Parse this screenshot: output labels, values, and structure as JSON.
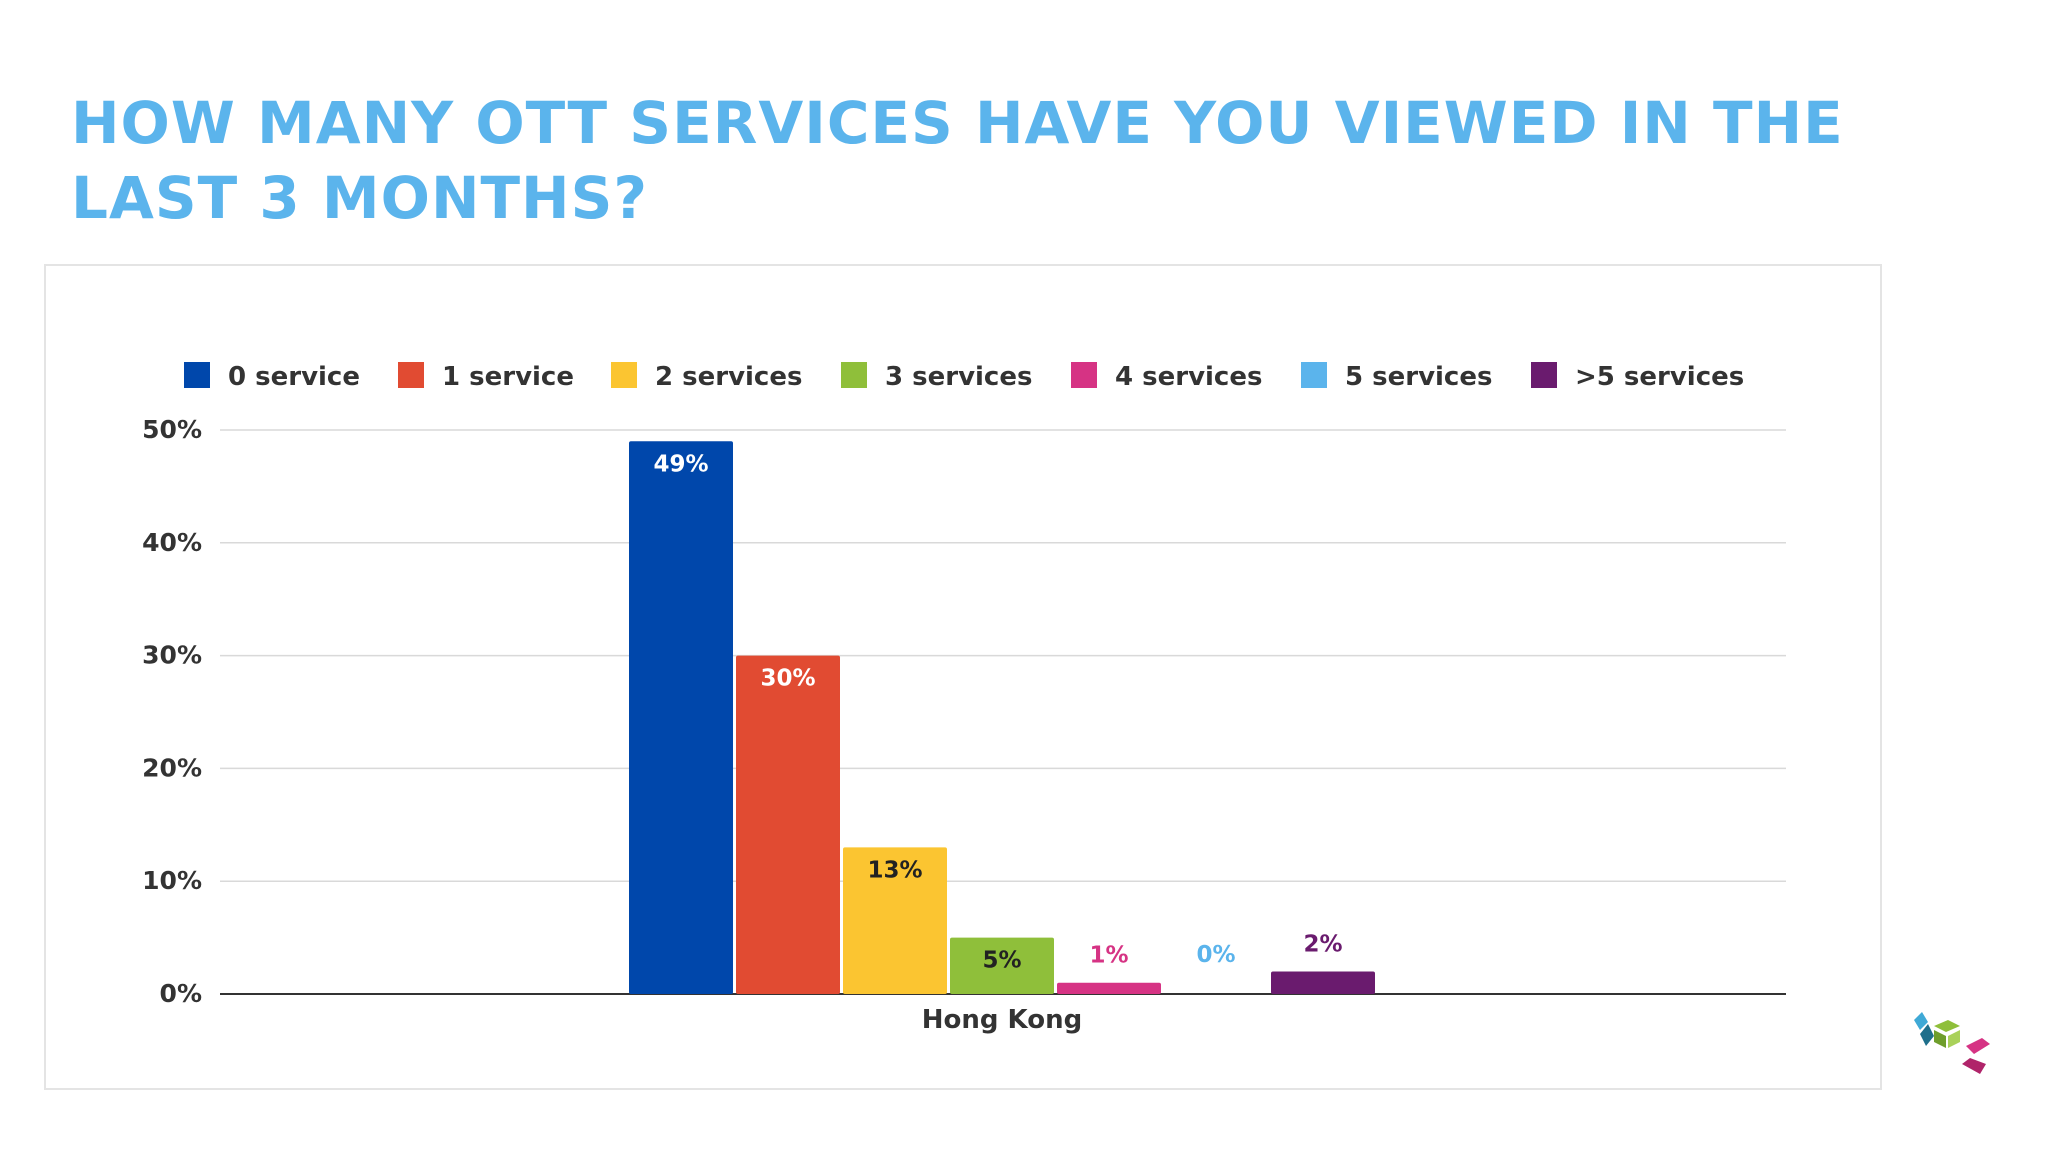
{
  "slide": {
    "title": "HOW MANY OTT SERVICES HAVE YOU VIEWED IN THE LAST 3 MONTHS?"
  },
  "colors": {
    "title": "#5bb4ec",
    "grid": "#d9d9d9",
    "axis": "#333333",
    "tick_text": "#333333"
  },
  "logo": {
    "icon": "brand-logo-icon"
  },
  "chart_data": {
    "type": "bar",
    "title": "",
    "xlabel": "",
    "ylabel": "",
    "categories": [
      "Hong Kong"
    ],
    "ylim": [
      0,
      50
    ],
    "yticks": [
      0,
      10,
      20,
      30,
      40,
      50
    ],
    "ytick_labels": [
      "0%",
      "10%",
      "20%",
      "30%",
      "40%",
      "50%"
    ],
    "grid": true,
    "legend_position": "top",
    "series": [
      {
        "name": "0 service",
        "values": [
          49
        ],
        "label": "49%",
        "color": "#0047ab",
        "label_color": "#ffffff",
        "label_position": "inside"
      },
      {
        "name": "1 service",
        "values": [
          30
        ],
        "label": "30%",
        "color": "#e14b32",
        "label_color": "#ffffff",
        "label_position": "inside"
      },
      {
        "name": "2 services",
        "values": [
          13
        ],
        "label": "13%",
        "color": "#fbc531",
        "label_color": "#222222",
        "label_position": "inside"
      },
      {
        "name": "3 services",
        "values": [
          5
        ],
        "label": "5%",
        "color": "#8fbf3a",
        "label_color": "#222222",
        "label_position": "inside"
      },
      {
        "name": "4 services",
        "values": [
          1
        ],
        "label": "1%",
        "color": "#d63384",
        "label_color": "#d63384",
        "label_position": "above"
      },
      {
        "name": "5 services",
        "values": [
          0
        ],
        "label": "0%",
        "color": "#5bb4ec",
        "label_color": "#5bb4ec",
        "label_position": "above"
      },
      {
        "name": ">5 services",
        "values": [
          2
        ],
        "label": "2%",
        "color": "#6a1b6e",
        "label_color": "#6a1b6e",
        "label_position": "above"
      }
    ]
  }
}
